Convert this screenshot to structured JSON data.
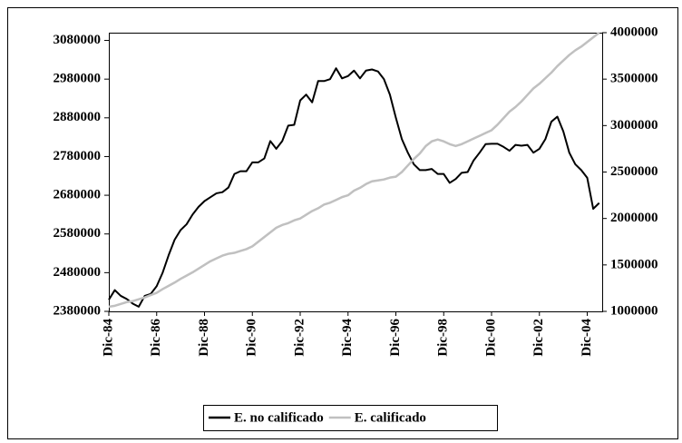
{
  "chart_data": {
    "type": "line",
    "categories": [
      "Dic-84",
      null,
      null,
      null,
      null,
      null,
      null,
      null,
      "Dic-86",
      null,
      null,
      null,
      null,
      null,
      null,
      null,
      "Dic-88",
      null,
      null,
      null,
      null,
      null,
      null,
      null,
      "Dic-90",
      null,
      null,
      null,
      null,
      null,
      null,
      null,
      "Dic-92",
      null,
      null,
      null,
      null,
      null,
      null,
      null,
      "Dic-94",
      null,
      null,
      null,
      null,
      null,
      null,
      null,
      "Dic-96",
      null,
      null,
      null,
      null,
      null,
      null,
      null,
      "Dic-98",
      null,
      null,
      null,
      null,
      null,
      null,
      null,
      "Dic-00",
      null,
      null,
      null,
      null,
      null,
      null,
      null,
      "Dic-02",
      null,
      null,
      null,
      null,
      null,
      null,
      null,
      "Dic-04",
      null,
      null
    ],
    "series": [
      {
        "name": "E. no calificado",
        "color": "#000000",
        "values": [
          2410000,
          2435000,
          2420000,
          2412000,
          2400000,
          2392000,
          2420000,
          2425000,
          2445000,
          2480000,
          2525000,
          2565000,
          2590000,
          2605000,
          2630000,
          2650000,
          2665000,
          2675000,
          2685000,
          2688000,
          2700000,
          2735000,
          2742000,
          2742000,
          2765000,
          2765000,
          2775000,
          2820000,
          2800000,
          2820000,
          2860000,
          2862000,
          2925000,
          2940000,
          2920000,
          2975000,
          2975000,
          2980000,
          3008000,
          2982000,
          2988000,
          3002000,
          2982000,
          3002000,
          3005000,
          3000000,
          2980000,
          2940000,
          2880000,
          2825000,
          2790000,
          2760000,
          2745000,
          2745000,
          2748000,
          2735000,
          2735000,
          2712000,
          2722000,
          2738000,
          2740000,
          2770000,
          2790000,
          2812000,
          2813000,
          2813000,
          2805000,
          2795000,
          2810000,
          2808000,
          2810000,
          2790000,
          2800000,
          2825000,
          2870000,
          2883000,
          2845000,
          2790000,
          2760000,
          2745000,
          2725000,
          2645000,
          2660000
        ]
      },
      {
        "name": "E. calificado",
        "color": "#c0c0c0",
        "axis": "y2",
        "values": [
          1050000,
          1060000,
          1080000,
          1100000,
          1110000,
          1130000,
          1150000,
          1175000,
          1200000,
          1240000,
          1275000,
          1310000,
          1350000,
          1385000,
          1420000,
          1460000,
          1500000,
          1540000,
          1570000,
          1600000,
          1620000,
          1630000,
          1650000,
          1670000,
          1700000,
          1750000,
          1800000,
          1850000,
          1900000,
          1930000,
          1950000,
          1980000,
          2000000,
          2040000,
          2080000,
          2110000,
          2150000,
          2170000,
          2200000,
          2230000,
          2250000,
          2300000,
          2330000,
          2370000,
          2400000,
          2410000,
          2420000,
          2440000,
          2450000,
          2500000,
          2570000,
          2640000,
          2700000,
          2780000,
          2830000,
          2850000,
          2830000,
          2800000,
          2780000,
          2800000,
          2830000,
          2860000,
          2890000,
          2920000,
          2950000,
          3010000,
          3080000,
          3150000,
          3200000,
          3260000,
          3330000,
          3400000,
          3450000,
          3510000,
          3570000,
          3640000,
          3700000,
          3760000,
          3810000,
          3850000,
          3900000,
          3950000,
          4000000
        ]
      }
    ],
    "ylim": [
      2380000,
      3100000
    ],
    "yticks": [
      2380000,
      2480000,
      2580000,
      2680000,
      2780000,
      2880000,
      2980000,
      3080000
    ],
    "y2lim": [
      1000000,
      4000000
    ],
    "y2ticks": [
      1000000,
      1500000,
      2000000,
      2500000,
      3000000,
      3500000,
      4000000
    ],
    "legend": "bottom"
  }
}
